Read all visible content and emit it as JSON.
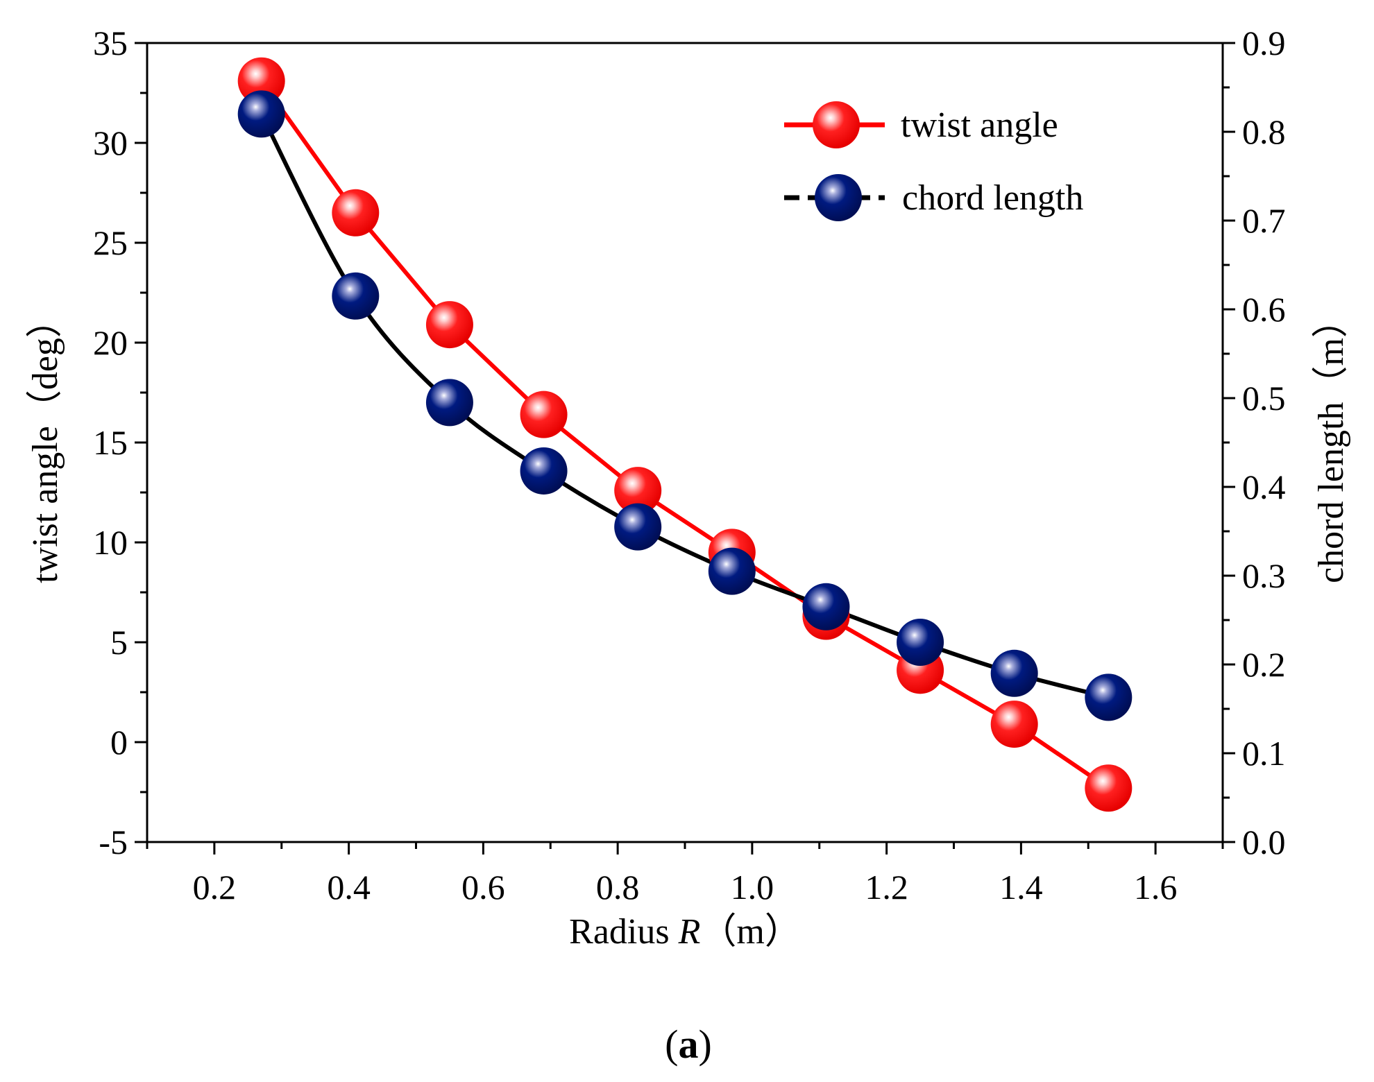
{
  "panel_label": {
    "open": "(",
    "letter": "a",
    "close": ")"
  },
  "chart_data": {
    "type": "line",
    "x": [
      0.27,
      0.41,
      0.55,
      0.69,
      0.83,
      0.97,
      1.11,
      1.25,
      1.39,
      1.53
    ],
    "xlabel": {
      "prefix": "Radius ",
      "italic": "R",
      "suffix": "（m）"
    },
    "xlim": [
      0.1,
      1.7
    ],
    "xticks": [
      "0.2",
      "0.4",
      "0.6",
      "0.8",
      "1.0",
      "1.2",
      "1.4",
      "1.6"
    ],
    "ylabel_left": "twist angle（deg）",
    "ylim_left": [
      -5,
      35
    ],
    "yticks_left": [
      "-5",
      "0",
      "5",
      "10",
      "15",
      "20",
      "25",
      "30",
      "35"
    ],
    "ylabel_right": "chord length（m）",
    "ylim_right": [
      0.0,
      0.9
    ],
    "yticks_right": [
      "0.0",
      "0.1",
      "0.2",
      "0.3",
      "0.4",
      "0.5",
      "0.6",
      "0.7",
      "0.8",
      "0.9"
    ],
    "series": [
      {
        "name": "twist angle",
        "axis": "left",
        "color": "#ff0000",
        "line_color": "#ff0000",
        "x": [
          0.27,
          0.41,
          0.55,
          0.69,
          0.83,
          0.97,
          1.11,
          1.25,
          1.39,
          1.53
        ],
        "values": [
          33.1,
          26.5,
          20.9,
          16.4,
          12.6,
          9.5,
          6.3,
          3.6,
          0.9,
          -2.3
        ]
      },
      {
        "name": "chord length",
        "axis": "right",
        "color": "#001a80",
        "line_color": "#000000",
        "x": [
          0.27,
          0.41,
          0.55,
          0.69,
          0.83,
          0.97,
          1.11,
          1.25,
          1.39,
          1.53
        ],
        "values": [
          0.82,
          0.615,
          0.495,
          0.418,
          0.355,
          0.305,
          0.265,
          0.225,
          0.19,
          0.163
        ]
      }
    ],
    "legend": "top-right"
  }
}
